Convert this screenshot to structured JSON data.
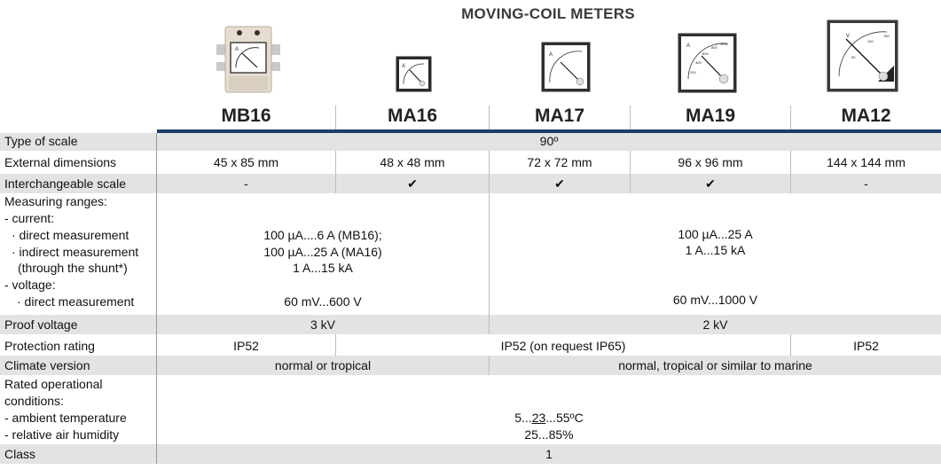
{
  "title": "MOVING-COIL METERS",
  "models": [
    "MB16",
    "MA16",
    "MA17",
    "MA19",
    "MA12"
  ],
  "meter_faces": {
    "mb16": {
      "unit": "A"
    },
    "ma16": {
      "unit": "A"
    },
    "ma17": {
      "unit": "A"
    },
    "ma19": {
      "unit": "A",
      "scale": [
        "200",
        "400",
        "600",
        "800"
      ],
      "top_label": "1000"
    },
    "ma12": {
      "unit": "V",
      "scale": [
        "50",
        "100",
        "150"
      ]
    }
  },
  "rows": {
    "type_of_scale": {
      "label": "Type of scale",
      "value": "90º"
    },
    "external_dimensions": {
      "label": "External dimensions",
      "values": [
        "45 x 85 mm",
        "48 x 48 mm",
        "72 x 72 mm",
        "96 x 96 mm",
        "144 x 144 mm"
      ]
    },
    "interchangeable_scale": {
      "label": "Interchangeable scale",
      "values": [
        "-",
        "✔",
        "✔",
        "✔",
        "-"
      ]
    },
    "measuring_ranges": {
      "label_lines": [
        "Measuring ranges:",
        "- current:",
        "· direct measurement",
        "· indirect measurement",
        "(through the shunt*)",
        "- voltage:",
        "· direct measurement"
      ],
      "left": {
        "lines": [
          "100 µA....6 A (MB16);",
          "100 µA...25 A (MA16)",
          "1 A...15 kA"
        ],
        "voltage": "60 mV...600 V"
      },
      "right": {
        "lines": [
          "100 µA...25 A",
          "1 A...15 kA"
        ],
        "voltage": "60 mV...1000 V"
      }
    },
    "proof_voltage": {
      "label": "Proof voltage",
      "left": "3 kV",
      "right": "2 kV"
    },
    "protection_rating": {
      "label": "Protection rating",
      "values": [
        "IP52",
        "IP52 (on request IP65)",
        "IP52"
      ]
    },
    "climate_version": {
      "label": "Climate version",
      "left": "normal or tropical",
      "right": "normal, tropical or  similar to marine"
    },
    "rated_conditions": {
      "label_lines": [
        "Rated operational",
        "conditions:",
        "- ambient temperature",
        "- relative air humidity"
      ],
      "temp_pre": "5...",
      "temp_mid": "23",
      "temp_post": "...55ºC",
      "humidity": "25...85%"
    },
    "class": {
      "label": "Class",
      "value": "1"
    }
  }
}
